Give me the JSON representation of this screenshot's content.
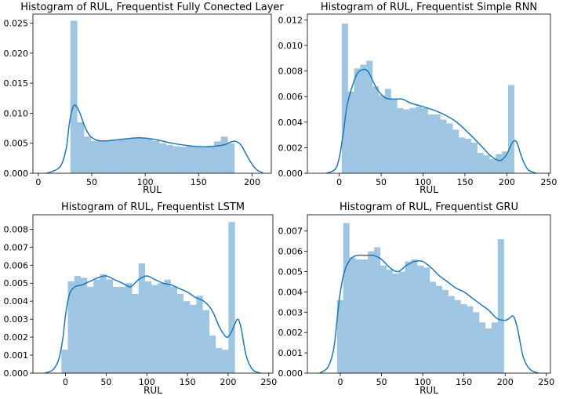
{
  "chart_data": [
    {
      "type": "histogram",
      "title": "Histogram of RUL, Frequentist Fully Conected Layer",
      "xlabel": "RUL",
      "ylabel": "",
      "xlim": [
        -5,
        218
      ],
      "ylim": [
        0,
        0.0265
      ],
      "xticks": [
        0,
        50,
        100,
        150,
        200
      ],
      "yticks": [
        0.0,
        0.005,
        0.01,
        0.015,
        0.02,
        0.025
      ],
      "ytick_labels": [
        "0.000",
        "0.005",
        "0.010",
        "0.015",
        "0.020",
        "0.025"
      ],
      "bin_start": 30,
      "bin_width": 6.4,
      "values": [
        0.0254,
        0.0085,
        0.0061,
        0.0054,
        0.0054,
        0.0055,
        0.0056,
        0.0057,
        0.0058,
        0.0059,
        0.0059,
        0.0057,
        0.0054,
        0.005,
        0.0047,
        0.0045,
        0.0044,
        0.0045,
        0.0044,
        0.0043,
        0.0046,
        0.0053,
        0.0061,
        0.005
      ],
      "kde": {
        "x": [
          8,
          20,
          26,
          29,
          32,
          35,
          39,
          43,
          48,
          55,
          65,
          80,
          95,
          110,
          125,
          140,
          155,
          165,
          175,
          180,
          185,
          190,
          195,
          200,
          205,
          210
        ],
        "y": [
          0.0,
          0.001,
          0.004,
          0.0082,
          0.0108,
          0.0113,
          0.01,
          0.008,
          0.0063,
          0.0055,
          0.0054,
          0.0057,
          0.0059,
          0.0056,
          0.005,
          0.0046,
          0.0044,
          0.0045,
          0.0048,
          0.0052,
          0.0053,
          0.0046,
          0.003,
          0.0015,
          0.0005,
          0.0001
        ]
      }
    },
    {
      "type": "histogram",
      "title": "Histogram of RUL, Frequentist Simple RNN",
      "xlabel": "RUL",
      "ylabel": "",
      "xlim": [
        -38,
        252
      ],
      "ylim": [
        0,
        0.01245
      ],
      "xticks": [
        0,
        50,
        100,
        150,
        200,
        250
      ],
      "yticks": [
        0.0,
        0.002,
        0.004,
        0.006,
        0.008,
        0.01,
        0.012
      ],
      "ytick_labels": [
        "0.000",
        "0.002",
        "0.004",
        "0.006",
        "0.008",
        "0.010",
        "0.012"
      ],
      "bin_start": 3,
      "bin_width": 7.35,
      "values": [
        0.0117,
        0.0064,
        0.0082,
        0.0085,
        0.0088,
        0.0068,
        0.0061,
        0.0066,
        0.0058,
        0.0051,
        0.005,
        0.0051,
        0.0052,
        0.0051,
        0.0046,
        0.0046,
        0.0042,
        0.0039,
        0.0034,
        0.0028,
        0.0027,
        0.0024,
        0.0016,
        0.0014,
        0.0011,
        0.0015,
        0.0017,
        0.0069
      ],
      "kde": {
        "x": [
          -15,
          -5,
          0,
          5,
          10,
          20,
          28,
          35,
          45,
          55,
          65,
          75,
          85,
          95,
          110,
          125,
          140,
          155,
          170,
          180,
          190,
          195,
          200,
          205,
          208,
          212,
          218,
          225,
          235
        ],
        "y": [
          0.0,
          0.0003,
          0.0012,
          0.0032,
          0.0055,
          0.0076,
          0.0081,
          0.0079,
          0.0066,
          0.0059,
          0.0058,
          0.0058,
          0.0055,
          0.0053,
          0.005,
          0.0046,
          0.004,
          0.0031,
          0.0021,
          0.0014,
          0.001,
          0.0011,
          0.0015,
          0.0022,
          0.0025,
          0.0024,
          0.0012,
          0.0003,
          0.0
        ]
      }
    },
    {
      "type": "histogram",
      "title": "Histogram of RUL, Frequentist LSTM",
      "xlabel": "RUL",
      "ylabel": "",
      "xlim": [
        -40,
        255
      ],
      "ylim": [
        0,
        0.0088
      ],
      "xticks": [
        0,
        50,
        100,
        150,
        200,
        250
      ],
      "yticks": [
        0.0,
        0.001,
        0.002,
        0.003,
        0.004,
        0.005,
        0.006,
        0.007,
        0.008
      ],
      "ytick_labels": [
        "0.000",
        "0.001",
        "0.002",
        "0.003",
        "0.004",
        "0.005",
        "0.006",
        "0.007",
        "0.008"
      ],
      "bin_start": -5,
      "bin_width": 7.9,
      "values": [
        0.0013,
        0.0051,
        0.0054,
        0.0053,
        0.0048,
        0.0052,
        0.0055,
        0.0052,
        0.0048,
        0.0048,
        0.005,
        0.0044,
        0.0061,
        0.0051,
        0.0049,
        0.005,
        0.0052,
        0.0048,
        0.0044,
        0.004,
        0.0038,
        0.0043,
        0.0035,
        0.0021,
        0.0014,
        0.0013,
        0.0084
      ],
      "kde": {
        "x": [
          -25,
          -15,
          -8,
          -3,
          0,
          5,
          12,
          20,
          30,
          40,
          50,
          60,
          70,
          80,
          90,
          100,
          110,
          120,
          130,
          140,
          150,
          160,
          170,
          180,
          190,
          198,
          203,
          208,
          212,
          216,
          222,
          230,
          240
        ],
        "y": [
          0.0,
          0.0002,
          0.0008,
          0.002,
          0.0032,
          0.0044,
          0.0048,
          0.0049,
          0.0051,
          0.0053,
          0.0054,
          0.0052,
          0.005,
          0.0048,
          0.0052,
          0.0054,
          0.0052,
          0.005,
          0.0049,
          0.0047,
          0.0045,
          0.0042,
          0.004,
          0.0035,
          0.0025,
          0.002,
          0.0022,
          0.0027,
          0.003,
          0.0025,
          0.001,
          0.0002,
          0.0
        ]
      }
    },
    {
      "type": "histogram",
      "title": "Histogram of RUL, Frequentist GRU",
      "xlabel": "RUL",
      "ylabel": "",
      "xlim": [
        -40,
        255
      ],
      "ylim": [
        0,
        0.0078
      ],
      "xticks": [
        0,
        50,
        100,
        150,
        200,
        250
      ],
      "yticks": [
        0.0,
        0.001,
        0.002,
        0.003,
        0.004,
        0.005,
        0.006,
        0.007
      ],
      "ytick_labels": [
        "0.000",
        "0.001",
        "0.002",
        "0.003",
        "0.004",
        "0.005",
        "0.006",
        "0.007"
      ],
      "bin_start": -4,
      "bin_width": 7.5,
      "values": [
        0.0036,
        0.0074,
        0.0057,
        0.0056,
        0.0056,
        0.006,
        0.0062,
        0.0053,
        0.0051,
        0.0049,
        0.005,
        0.0055,
        0.0056,
        0.0053,
        0.0052,
        0.0045,
        0.0043,
        0.0041,
        0.0038,
        0.0036,
        0.0034,
        0.0033,
        0.003,
        0.0025,
        0.0022,
        0.0025,
        0.0066
      ],
      "kde": {
        "x": [
          -25,
          -15,
          -8,
          -3,
          0,
          5,
          12,
          20,
          30,
          40,
          50,
          60,
          70,
          80,
          90,
          100,
          110,
          120,
          130,
          140,
          150,
          160,
          170,
          180,
          190,
          200,
          205,
          210,
          215,
          222,
          230,
          240
        ],
        "y": [
          0.0,
          0.0003,
          0.0012,
          0.003,
          0.004,
          0.005,
          0.0056,
          0.0058,
          0.0058,
          0.0058,
          0.0056,
          0.0052,
          0.005,
          0.0053,
          0.0055,
          0.0055,
          0.0052,
          0.0048,
          0.0045,
          0.0042,
          0.004,
          0.0037,
          0.0034,
          0.0031,
          0.0027,
          0.0026,
          0.0027,
          0.0028,
          0.0022,
          0.0008,
          0.0002,
          0.0
        ]
      }
    }
  ]
}
